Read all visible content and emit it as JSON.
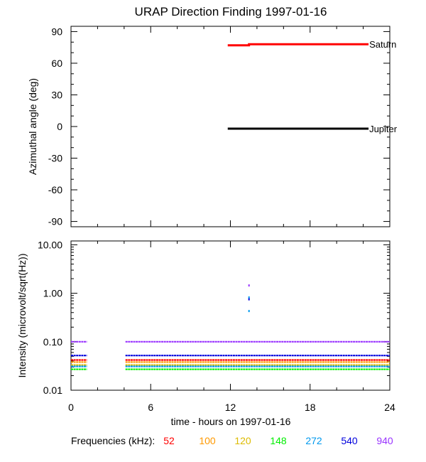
{
  "chart_data": [
    {
      "type": "line",
      "title": "URAP Direction Finding  1997-01-16",
      "ylabel": "Azimuthal angle (deg)",
      "ylim": [
        -95,
        95
      ],
      "xlim": [
        0,
        24
      ],
      "yticks": [
        "90",
        "60",
        "30",
        "0",
        "-30",
        "-60",
        "-90"
      ],
      "ytick_values": [
        90,
        60,
        30,
        0,
        -30,
        -60,
        -90
      ],
      "series": [
        {
          "name": "Saturn",
          "color": "#ff0000",
          "x": [
            11.8,
            13.4,
            13.4,
            22.4
          ],
          "y": [
            77,
            77,
            78,
            78
          ]
        },
        {
          "name": "Jupiter",
          "color": "#000000",
          "x": [
            11.8,
            22.4
          ],
          "y": [
            -2,
            -2
          ]
        }
      ]
    },
    {
      "type": "line",
      "ylabel": "Intensity (microvolt/sqrt(Hz))",
      "xlabel": "time - hours on 1997-01-16",
      "yscale": "log",
      "ylim": [
        0.01,
        12
      ],
      "xlim": [
        0,
        24
      ],
      "xticks": [
        "0",
        "6",
        "12",
        "18",
        "24"
      ],
      "xtick_values": [
        0,
        6,
        12,
        18,
        24
      ],
      "yticks": [
        "10.00",
        "1.00",
        "0.10",
        "0.01"
      ],
      "ytick_values": [
        10,
        1,
        0.1,
        0.01
      ],
      "segments": [
        [
          0,
          1.2
        ],
        [
          4.1,
          24
        ]
      ],
      "legend_label": "Frequencies (kHz):",
      "series": [
        {
          "name": "52",
          "color": "#ff0000",
          "level": 0.042
        },
        {
          "name": "100",
          "color": "#ff9900",
          "level": 0.038
        },
        {
          "name": "120",
          "color": "#ddbb00",
          "level": 0.033
        },
        {
          "name": "148",
          "color": "#00ee00",
          "level": 0.027
        },
        {
          "name": "272",
          "color": "#0099ee",
          "level": 0.031
        },
        {
          "name": "540",
          "color": "#0000dd",
          "level": 0.052
        },
        {
          "name": "940",
          "color": "#9933ff",
          "level": 0.1
        }
      ],
      "spike": {
        "x": 13.4,
        "points": [
          {
            "y": 1.45,
            "color": "#9933ff"
          },
          {
            "y": 0.82,
            "color": "#0099ee"
          },
          {
            "y": 0.75,
            "color": "#0000dd"
          },
          {
            "y": 0.43,
            "color": "#0099ee"
          }
        ]
      }
    }
  ]
}
